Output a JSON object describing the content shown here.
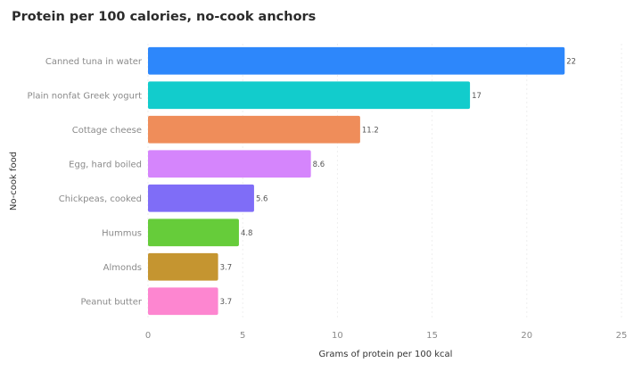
{
  "chart_data": {
    "type": "bar",
    "orientation": "horizontal",
    "title": "Protein per 100 calories, no-cook anchors",
    "xlabel": "Grams of protein per 100 kcal",
    "ylabel": "No-cook food",
    "xlim": [
      0,
      25
    ],
    "xticks": [
      0,
      5,
      10,
      15,
      20,
      25
    ],
    "grid": true,
    "categories": [
      "Canned tuna in water",
      "Plain nonfat Greek yogurt",
      "Cottage cheese",
      "Egg, hard boiled",
      "Chickpeas, cooked",
      "Hummus",
      "Almonds",
      "Peanut butter"
    ],
    "values": [
      22,
      17,
      11.2,
      8.6,
      5.6,
      4.8,
      3.7,
      3.7
    ],
    "data_labels": [
      "22",
      "17",
      "11.2",
      "8.6",
      "5.6",
      "4.8",
      "3.7",
      "3.7"
    ],
    "colors": [
      "#2d87fb",
      "#12cccc",
      "#ef8d5a",
      "#d585fc",
      "#7f6df7",
      "#66cc3a",
      "#c59530",
      "#fd86d0"
    ]
  }
}
